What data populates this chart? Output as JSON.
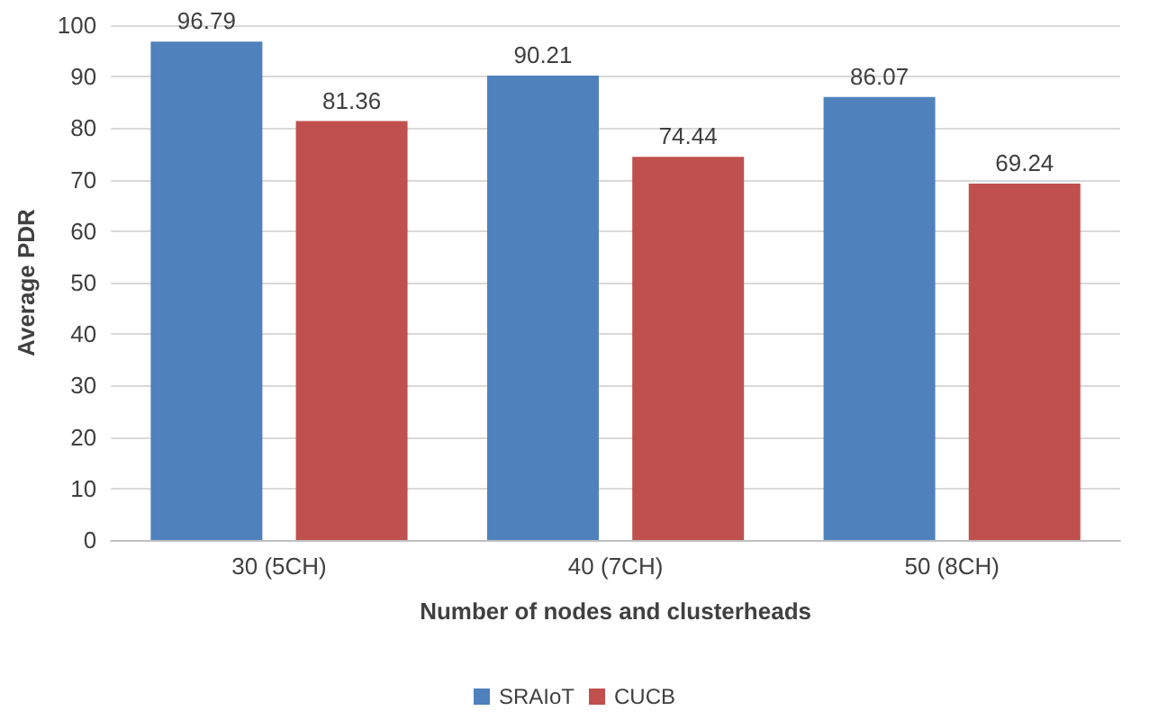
{
  "chart_data": {
    "type": "bar",
    "xlabel": "Number of nodes and clusterheads",
    "ylabel": "Average PDR",
    "categories": [
      "30 (5CH)",
      "40 (7CH)",
      "50 (8CH)"
    ],
    "series": [
      {
        "name": "SRAIoT",
        "color": "#4f81bd",
        "values": [
          96.79,
          90.21,
          86.07
        ]
      },
      {
        "name": "CUCB",
        "color": "#c0504d",
        "values": [
          81.36,
          74.44,
          69.24
        ]
      }
    ],
    "ylim": [
      0,
      100
    ],
    "yticks": [
      0,
      10,
      20,
      30,
      40,
      50,
      60,
      70,
      80,
      90,
      100
    ],
    "grid": "y",
    "legend": "bottom",
    "data_labels": true
  }
}
